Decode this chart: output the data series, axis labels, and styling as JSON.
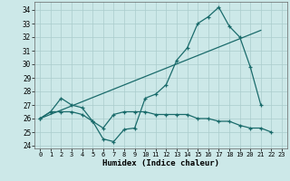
{
  "title": "",
  "xlabel": "Humidex (Indice chaleur)",
  "background_color": "#cce8e8",
  "grid_color": "#aacccc",
  "line_color": "#1a6b6b",
  "xlim": [
    -0.5,
    23.5
  ],
  "ylim": [
    23.8,
    34.6
  ],
  "yticks": [
    24,
    25,
    26,
    27,
    28,
    29,
    30,
    31,
    32,
    33,
    34
  ],
  "xticks": [
    0,
    1,
    2,
    3,
    4,
    5,
    6,
    7,
    8,
    9,
    10,
    11,
    12,
    13,
    14,
    15,
    16,
    17,
    18,
    19,
    20,
    21,
    22,
    23
  ],
  "series1_x": [
    0,
    1,
    2,
    3,
    4,
    5,
    6,
    7,
    8,
    9,
    10,
    11,
    12,
    13,
    14,
    15,
    16,
    17,
    18,
    19,
    20,
    21
  ],
  "series1_y": [
    26.0,
    26.5,
    27.5,
    27.0,
    26.8,
    25.8,
    24.5,
    24.3,
    25.2,
    25.3,
    27.5,
    27.8,
    28.5,
    30.3,
    31.2,
    33.0,
    33.5,
    34.2,
    32.8,
    32.0,
    29.8,
    27.0
  ],
  "series2_x": [
    0,
    21
  ],
  "series2_y": [
    26.0,
    32.5
  ],
  "series3_x": [
    0,
    1,
    2,
    3,
    4,
    5,
    6,
    7,
    8,
    9,
    10,
    11,
    12,
    13,
    14,
    15,
    16,
    17,
    18,
    19,
    20,
    21,
    22
  ],
  "series3_y": [
    26.0,
    26.5,
    26.5,
    26.5,
    26.3,
    25.8,
    25.3,
    26.3,
    26.5,
    26.5,
    26.5,
    26.3,
    26.3,
    26.3,
    26.3,
    26.0,
    26.0,
    25.8,
    25.8,
    25.5,
    25.3,
    25.3,
    25.0
  ]
}
